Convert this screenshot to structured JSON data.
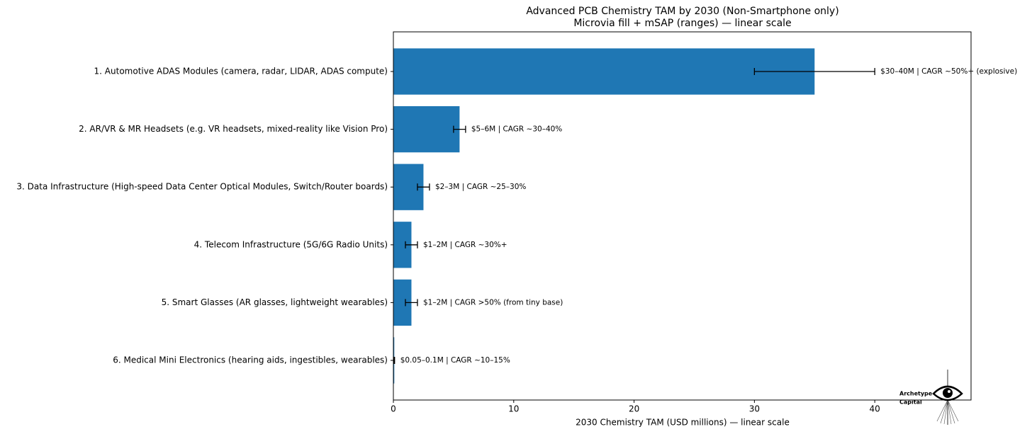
{
  "chart_data": {
    "type": "hbar",
    "title": "Advanced PCB Chemistry TAM by 2030 (Non-Smartphone only)",
    "subtitle": "Microvia fill + mSAP (ranges) — linear scale",
    "x_label": "2030 Chemistry TAM (USD millions) — linear scale",
    "categories": [
      "1. Automotive ADAS Modules (camera, radar, LIDAR, ADAS compute)",
      "2. AR/VR & MR Headsets (e.g. VR headsets, mixed-reality like Vision Pro)",
      "3. Data Infrastructure (High-speed Data Center Optical Modules, Switch/Router boards)",
      "4. Telecom Infrastructure (5G/6G Radio Units)",
      "5. Smart Glasses (AR glasses, lightweight wearables)",
      "6. Medical Mini Electronics (hearing aids, ingestibles, wearables)"
    ],
    "values": [
      35,
      5.5,
      2.5,
      1.5,
      1.5,
      0.075
    ],
    "errors": [
      5,
      0.5,
      0.5,
      0.5,
      0.5,
      0.025
    ],
    "annotations": [
      "$30–40M | CAGR ~50%+ (explosive)",
      "$5–6M | CAGR ~30–40%",
      "$2–3M | CAGR ~25–30%",
      "$1–2M | CAGR ~30%+",
      "$1–2M | CAGR >50% (from tiny base)",
      "$0.05–0.1M | CAGR ~10–15%"
    ],
    "color": "#1f77b4",
    "xlim": [
      0,
      48
    ],
    "xticks": [
      0,
      10,
      20,
      30,
      40
    ]
  },
  "logo": {
    "lines": [
      "Archetype",
      "Capital"
    ]
  }
}
